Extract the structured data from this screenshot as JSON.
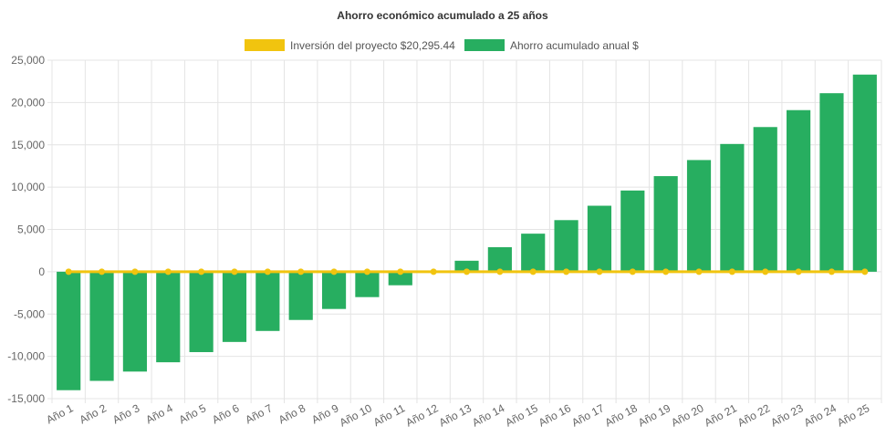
{
  "chart_data": {
    "type": "bar",
    "title": "Ahorro económico acumulado a 25 años",
    "xlabel": "",
    "ylabel": "",
    "ylim": [
      -15000,
      25000
    ],
    "yticks": [
      25000,
      20000,
      15000,
      10000,
      5000,
      0,
      -5000,
      -10000,
      -15000
    ],
    "ytick_labels": [
      "25,000",
      "20,000",
      "15,000",
      "10,000",
      "5,000",
      "0",
      "-5,000",
      "-10,000",
      "-15,000"
    ],
    "grid": true,
    "legend_position": "top-center",
    "categories": [
      "Año 1",
      "Año 2",
      "Año 3",
      "Año 4",
      "Año 5",
      "Año 6",
      "Año 7",
      "Año 8",
      "Año 9",
      "Año 10",
      "Año 11",
      "Año 12",
      "Año 13",
      "Año 14",
      "Año 15",
      "Año 16",
      "Año 17",
      "Año 18",
      "Año 19",
      "Año 20",
      "Año 21",
      "Año 22",
      "Año 23",
      "Año 24",
      "Año 25"
    ],
    "series": [
      {
        "name": "Inversión del proyecto $20,295.44",
        "type": "line",
        "color": "#f1c40f",
        "values": [
          0,
          0,
          0,
          0,
          0,
          0,
          0,
          0,
          0,
          0,
          0,
          0,
          0,
          0,
          0,
          0,
          0,
          0,
          0,
          0,
          0,
          0,
          0,
          0,
          0
        ]
      },
      {
        "name": "Ahorro acumulado anual $",
        "type": "bar",
        "color": "#27ae60",
        "values": [
          -14000,
          -12900,
          -11800,
          -10700,
          -9500,
          -8300,
          -7000,
          -5700,
          -4400,
          -3000,
          -1600,
          0,
          1300,
          2900,
          4500,
          6100,
          7800,
          9600,
          11300,
          13200,
          15100,
          17100,
          19100,
          21100,
          23300
        ]
      }
    ]
  }
}
